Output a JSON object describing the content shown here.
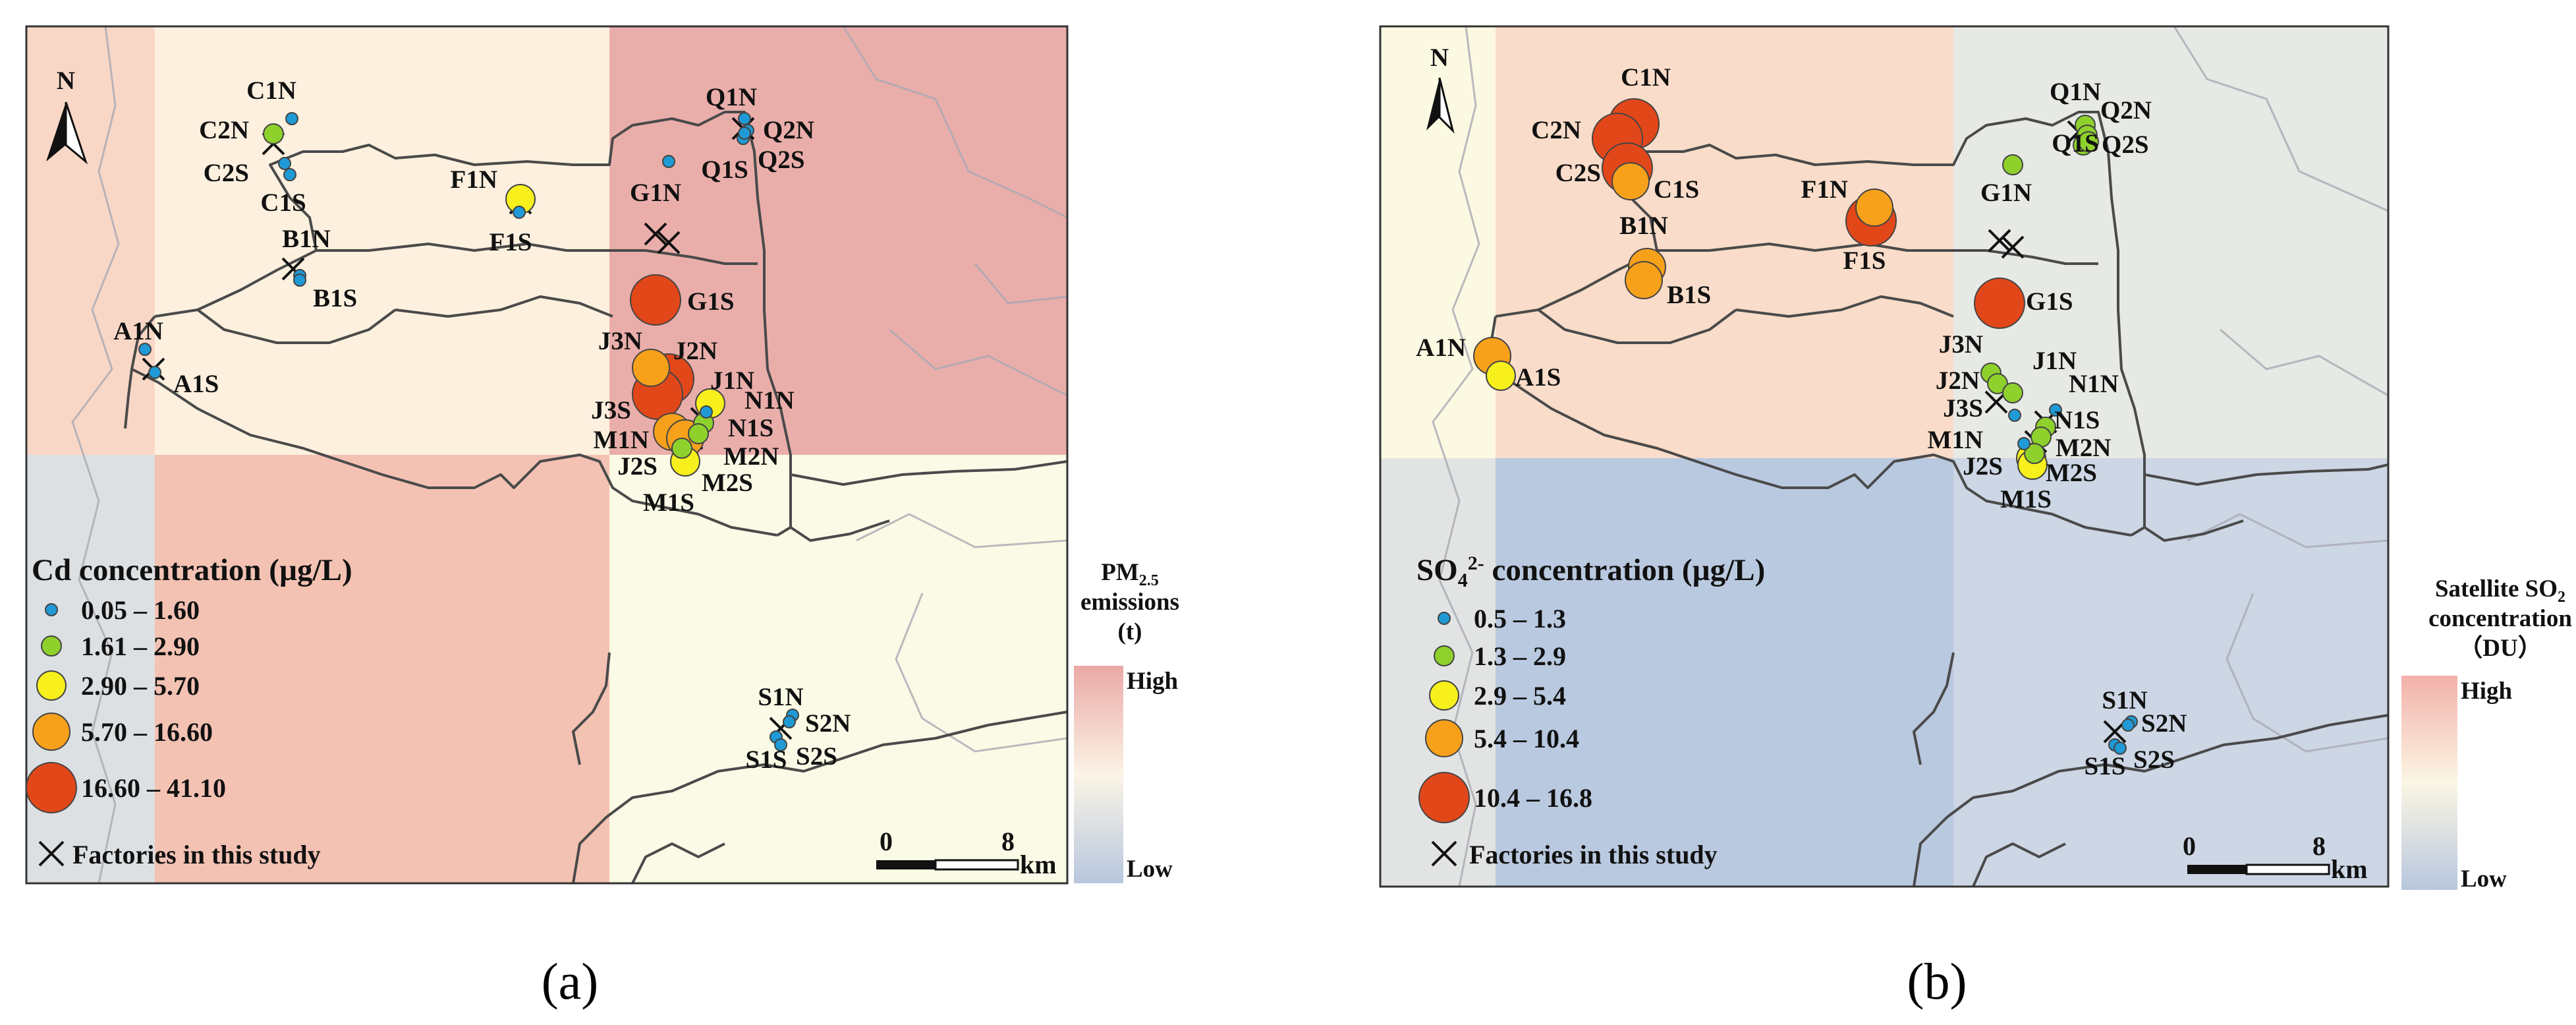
{
  "panels": [
    {
      "caption": "(a)",
      "legend": {
        "title": "Cd concentration (µg/L)",
        "classes": [
          {
            "label": "0.05 – 1.60",
            "color": "#1f9ad6"
          },
          {
            "label": "1.61 – 2.90",
            "color": "#8fd12c"
          },
          {
            "label": "2.90 – 5.70",
            "color": "#f7f01c"
          },
          {
            "label": "5.70 – 16.60",
            "color": "#f7a11b"
          },
          {
            "label": "16.60 – 41.10",
            "color": "#e2471a"
          }
        ],
        "factory_label": "Factories in this study"
      },
      "colorbar": {
        "title_lines": [
          "PM2.5",
          "emissions",
          "(t)"
        ],
        "high": "High",
        "low": "Low"
      },
      "scale": {
        "zero": "0",
        "eight": "8",
        "unit": "km"
      },
      "north": "N",
      "bg_colors": {
        "nw": "#f9d7c6",
        "left": "#fdf0df",
        "ne": "#eaaeaa",
        "sw": "#dde0e2",
        "s": "#f3c2b3",
        "se": "#fafae6"
      },
      "sites": [
        {
          "id": "C1N",
          "cls": 0
        },
        {
          "id": "C2N",
          "cls": 1
        },
        {
          "id": "C2S",
          "cls": 0
        },
        {
          "id": "C1S",
          "cls": 0
        },
        {
          "id": "F1N",
          "cls": 2
        },
        {
          "id": "F1S",
          "cls": 0
        },
        {
          "id": "B1N",
          "cls": 0
        },
        {
          "id": "B1S",
          "cls": 0
        },
        {
          "id": "A1N",
          "cls": 0
        },
        {
          "id": "A1S",
          "cls": 0
        },
        {
          "id": "Q1N",
          "cls": 0
        },
        {
          "id": "Q2N",
          "cls": 0
        },
        {
          "id": "Q1S",
          "cls": 0
        },
        {
          "id": "Q2S",
          "cls": 0
        },
        {
          "id": "G1N",
          "cls": 0
        },
        {
          "id": "G1S",
          "cls": 4
        },
        {
          "id": "J3N",
          "cls": 3
        },
        {
          "id": "J2N",
          "cls": 4
        },
        {
          "id": "J1N",
          "cls": 2
        },
        {
          "id": "N1N",
          "cls": 0
        },
        {
          "id": "J3S",
          "cls": 4
        },
        {
          "id": "M1N",
          "cls": 3
        },
        {
          "id": "N1S",
          "cls": 1
        },
        {
          "id": "M2N",
          "cls": 1
        },
        {
          "id": "J2S",
          "cls": 3
        },
        {
          "id": "M2S",
          "cls": 1
        },
        {
          "id": "M1S",
          "cls": 2
        },
        {
          "id": "S1N",
          "cls": 0
        },
        {
          "id": "S2N",
          "cls": 0
        },
        {
          "id": "S1S",
          "cls": 0
        },
        {
          "id": "S2S",
          "cls": 0
        }
      ]
    },
    {
      "caption": "(b)",
      "legend": {
        "title": "SO42- concentration (µg/L)",
        "classes": [
          {
            "label": "0.5 – 1.3",
            "color": "#1f9ad6"
          },
          {
            "label": "1.3 – 2.9",
            "color": "#8fd12c"
          },
          {
            "label": "2.9 – 5.4",
            "color": "#f7f01c"
          },
          {
            "label": "5.4 – 10.4",
            "color": "#f7a11b"
          },
          {
            "label": "10.4 – 16.8",
            "color": "#e2471a"
          }
        ],
        "factory_label": "Factories in this study"
      },
      "colorbar": {
        "title_lines": [
          "Satellite SO2",
          "concentration",
          "（DU）"
        ],
        "high": "High",
        "low": "Low"
      },
      "scale": {
        "zero": "0",
        "eight": "8",
        "unit": "km"
      },
      "north": "N",
      "bg_colors": {
        "nw": "#fcf9e2",
        "n": "#f9dcc9",
        "ne": "#e6e9e4",
        "sw": "#e2e4e3",
        "s": "#b9c9df",
        "se": "#ccd6e4"
      },
      "sites": [
        {
          "id": "C1N",
          "cls": 4
        },
        {
          "id": "C2N",
          "cls": 4
        },
        {
          "id": "C2S",
          "cls": 4
        },
        {
          "id": "C1S",
          "cls": 3
        },
        {
          "id": "F1N",
          "cls": 3
        },
        {
          "id": "F1S",
          "cls": 4
        },
        {
          "id": "B1N",
          "cls": 3
        },
        {
          "id": "B1S",
          "cls": 3
        },
        {
          "id": "A1N",
          "cls": 3
        },
        {
          "id": "A1S",
          "cls": 2
        },
        {
          "id": "Q1N",
          "cls": 1
        },
        {
          "id": "Q2N",
          "cls": 1
        },
        {
          "id": "Q1S",
          "cls": 1
        },
        {
          "id": "Q2S",
          "cls": 1
        },
        {
          "id": "G1N",
          "cls": 1
        },
        {
          "id": "G1S",
          "cls": 4
        },
        {
          "id": "J3N",
          "cls": 1
        },
        {
          "id": "J2N",
          "cls": 1
        },
        {
          "id": "J1N",
          "cls": 1
        },
        {
          "id": "N1N",
          "cls": 0
        },
        {
          "id": "J3S",
          "cls": 0
        },
        {
          "id": "M1N",
          "cls": 0
        },
        {
          "id": "N1S",
          "cls": 1
        },
        {
          "id": "M2N",
          "cls": 1
        },
        {
          "id": "J2S",
          "cls": 2
        },
        {
          "id": "M2S",
          "cls": 1
        },
        {
          "id": "M1S",
          "cls": 2
        },
        {
          "id": "S1N",
          "cls": 0
        },
        {
          "id": "S2N",
          "cls": 0
        },
        {
          "id": "S1S",
          "cls": 0
        },
        {
          "id": "S2S",
          "cls": 0
        }
      ]
    }
  ]
}
